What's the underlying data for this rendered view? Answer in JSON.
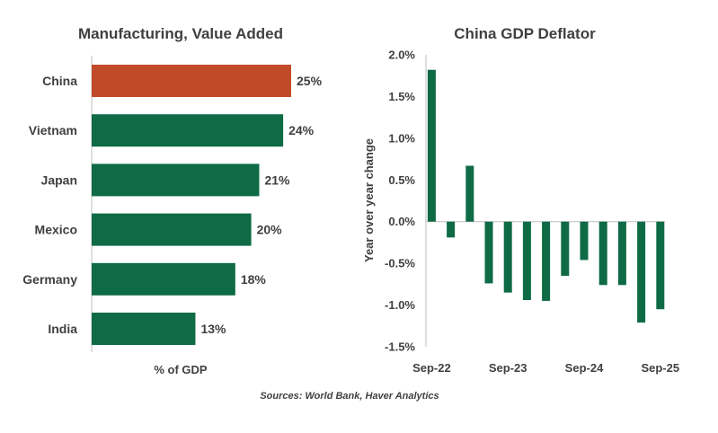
{
  "source": "Sources: World Bank, Haver Analytics",
  "colors": {
    "green": "#0e6b45",
    "orange": "#c14a28",
    "axis": "#bfbfbf",
    "text": "#404040"
  },
  "chart_data": [
    {
      "type": "bar",
      "orientation": "horizontal",
      "title": "Manufacturing, Value Added",
      "xlabel": "% of GDP",
      "ylabel": "",
      "categories": [
        "China",
        "Vietnam",
        "Japan",
        "Mexico",
        "Germany",
        "India"
      ],
      "values": [
        25,
        24,
        21,
        20,
        18,
        13
      ],
      "value_labels": [
        "25%",
        "24%",
        "21%",
        "20%",
        "18%",
        "13%"
      ],
      "highlight": "China",
      "xlim": [
        0,
        25
      ]
    },
    {
      "type": "bar",
      "title": "China GDP Deflator",
      "xlabel": "",
      "ylabel": "Year over year change",
      "x": [
        "Sep-22",
        "Dec-22",
        "Mar-23",
        "Jun-23",
        "Sep-23",
        "Dec-23",
        "Mar-24",
        "Jun-24",
        "Sep-24",
        "Dec-24",
        "Mar-25",
        "Jun-25",
        "Sep-25"
      ],
      "values": [
        1.82,
        -0.19,
        0.67,
        -0.74,
        -0.85,
        -0.94,
        -0.95,
        -0.65,
        -0.46,
        -0.76,
        -0.76,
        -1.21,
        -1.05
      ],
      "ylim": [
        -1.5,
        2.0
      ],
      "yticks": [
        2.0,
        1.5,
        1.0,
        0.5,
        0.0,
        -0.5,
        -1.0,
        -1.5
      ],
      "ytick_labels": [
        "2.0%",
        "1.5%",
        "1.0%",
        "0.5%",
        "0.0%",
        "-0.5%",
        "-1.0%",
        "-1.5%"
      ],
      "xtick_labels": [
        "Sep-22",
        "Sep-23",
        "Sep-24",
        "Sep-25"
      ],
      "xtick_indices": [
        0,
        4,
        8,
        12
      ]
    }
  ]
}
